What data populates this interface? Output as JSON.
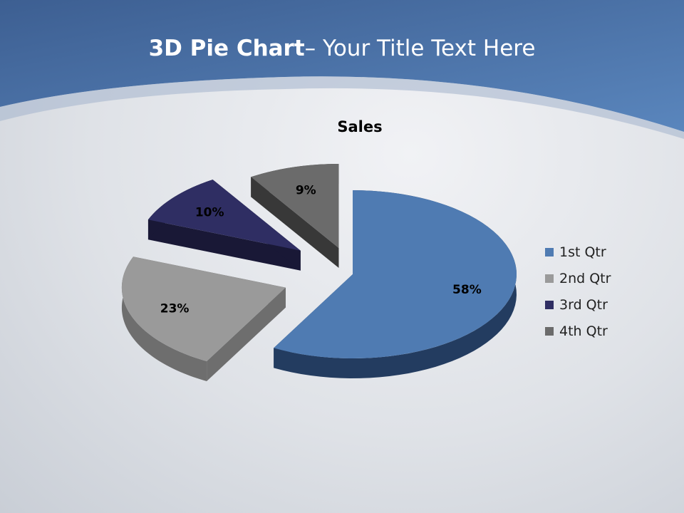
{
  "slide": {
    "title_bold": "3D Pie Chart",
    "title_rest": "– Your Title Text Here"
  },
  "chart_data": {
    "type": "pie",
    "style": "3d-exploded",
    "title": "Sales",
    "categories": [
      "1st Qtr",
      "2nd Qtr",
      "3rd Qtr",
      "4th Qtr"
    ],
    "values": [
      58,
      23,
      10,
      9
    ],
    "data_labels": [
      "58%",
      "23%",
      "10%",
      "9%"
    ],
    "colors": [
      "#4f7bb2",
      "#9a9a9a",
      "#2f2e63",
      "#6b6b6b"
    ],
    "side_colors": [
      "#233c60",
      "#6e6e6e",
      "#191836",
      "#383838"
    ],
    "legend_position": "right"
  }
}
